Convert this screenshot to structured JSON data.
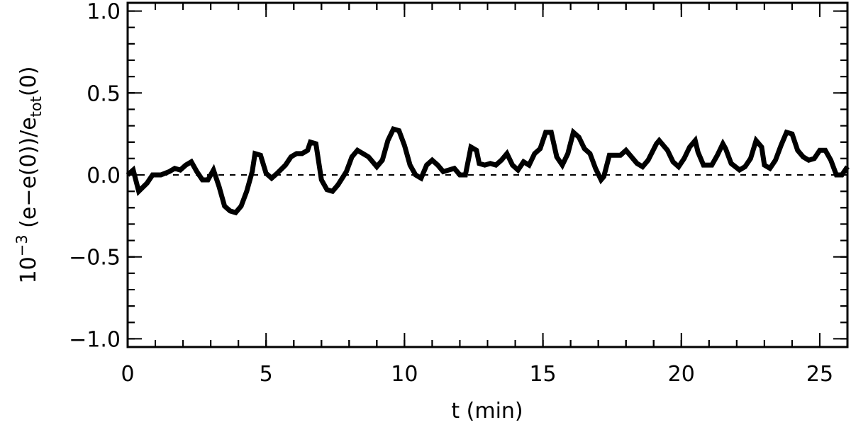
{
  "chart_data": {
    "type": "line",
    "xlabel": "t (min)",
    "ylabel_parts": [
      "10",
      "−3",
      " (e−e(0))/e",
      "tot",
      "(0)"
    ],
    "x": [
      0,
      0.2,
      0.4,
      0.7,
      0.9,
      1.2,
      1.5,
      1.7,
      1.9,
      2.1,
      2.3,
      2.5,
      2.7,
      2.9,
      3.1,
      3.3,
      3.5,
      3.7,
      3.9,
      4.1,
      4.3,
      4.5,
      4.6,
      4.8,
      5.0,
      5.2,
      5.4,
      5.7,
      5.9,
      6.1,
      6.3,
      6.5,
      6.6,
      6.8,
      7.0,
      7.2,
      7.4,
      7.6,
      7.9,
      8.1,
      8.3,
      8.5,
      8.7,
      9.0,
      9.2,
      9.4,
      9.6,
      9.8,
      10.0,
      10.2,
      10.4,
      10.6,
      10.8,
      11.0,
      11.2,
      11.4,
      11.6,
      11.8,
      12.0,
      12.2,
      12.4,
      12.6,
      12.7,
      12.9,
      13.1,
      13.3,
      13.5,
      13.7,
      13.9,
      14.1,
      14.3,
      14.5,
      14.7,
      14.9,
      15.1,
      15.3,
      15.5,
      15.7,
      15.9,
      16.1,
      16.3,
      16.5,
      16.7,
      16.9,
      17.1,
      17.2,
      17.4,
      17.6,
      17.8,
      18.0,
      18.2,
      18.4,
      18.6,
      18.8,
      19.1,
      19.2,
      19.5,
      19.7,
      19.9,
      20.1,
      20.3,
      20.5,
      20.6,
      20.8,
      21.1,
      21.3,
      21.5,
      21.6,
      21.8,
      22.1,
      22.3,
      22.5,
      22.7,
      22.9,
      23.0,
      23.2,
      23.4,
      23.6,
      23.8,
      24.0,
      24.2,
      24.4,
      24.6,
      24.8,
      25.0,
      25.2,
      25.4,
      25.6,
      25.8,
      26.0
    ],
    "series": [
      {
        "color": "#000000",
        "values": [
          0,
          0.03,
          -0.1,
          -0.05,
          0,
          0,
          0.02,
          0.04,
          0.03,
          0.06,
          0.08,
          0.02,
          -0.03,
          -0.03,
          0.03,
          -0.07,
          -0.19,
          -0.22,
          -0.23,
          -0.19,
          -0.1,
          0.02,
          0.13,
          0.12,
          0.01,
          -0.02,
          0.01,
          0.06,
          0.11,
          0.13,
          0.13,
          0.15,
          0.2,
          0.19,
          -0.03,
          -0.09,
          -0.1,
          -0.06,
          0.02,
          0.11,
          0.15,
          0.13,
          0.11,
          0.05,
          0.09,
          0.21,
          0.28,
          0.27,
          0.18,
          0.06,
          0,
          -0.02,
          0.06,
          0.09,
          0.06,
          0.02,
          0.03,
          0.04,
          0,
          0,
          0.17,
          0.15,
          0.07,
          0.06,
          0.07,
          0.06,
          0.09,
          0.13,
          0.06,
          0.03,
          0.08,
          0.06,
          0.13,
          0.16,
          0.26,
          0.26,
          0.11,
          0.06,
          0.13,
          0.26,
          0.23,
          0.16,
          0.13,
          0.04,
          -0.03,
          -0.01,
          0.12,
          0.12,
          0.12,
          0.15,
          0.11,
          0.07,
          0.05,
          0.09,
          0.19,
          0.21,
          0.15,
          0.08,
          0.05,
          0.1,
          0.17,
          0.21,
          0.14,
          0.06,
          0.06,
          0.12,
          0.19,
          0.16,
          0.07,
          0.03,
          0.05,
          0.1,
          0.21,
          0.17,
          0.06,
          0.04,
          0.09,
          0.18,
          0.26,
          0.25,
          0.15,
          0.11,
          0.09,
          0.1,
          0.15,
          0.15,
          0.09,
          0.0,
          0.0,
          0.05
        ]
      }
    ],
    "xlim": [
      0,
      26
    ],
    "xticks": [
      0,
      5,
      10,
      15,
      20,
      25
    ],
    "ylim": [
      -1.05,
      1.05
    ],
    "yticks": [
      {
        "value": -1,
        "label": "−1.0"
      },
      {
        "value": -0.5,
        "label": "−0.5"
      },
      {
        "value": 0,
        "label": "0.0"
      },
      {
        "value": 0.5,
        "label": "0.5"
      },
      {
        "value": 1,
        "label": "1.0"
      }
    ],
    "hline": 0
  }
}
